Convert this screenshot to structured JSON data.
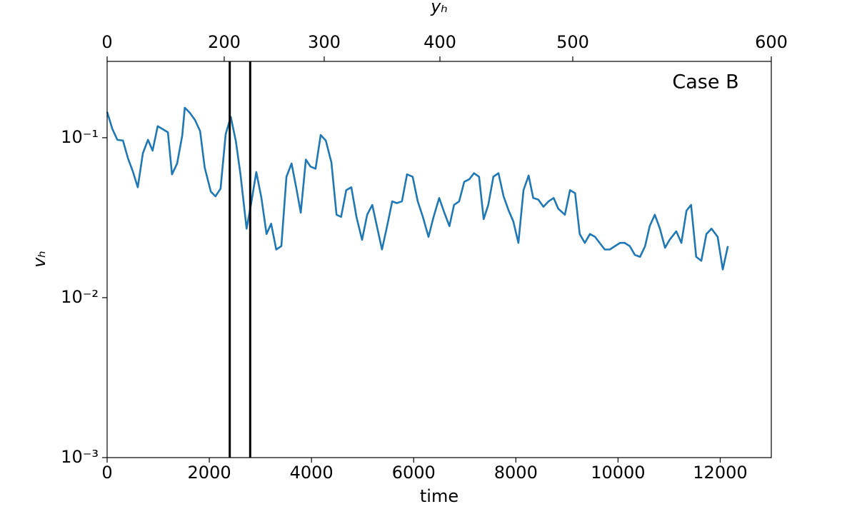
{
  "chart_data": {
    "type": "line",
    "annotation": "Case B",
    "xlabel": "time",
    "ylabel": "vₕ",
    "x2label": "yₕ",
    "xlim": [
      0,
      13000
    ],
    "xticks": [
      0,
      2000,
      4000,
      6000,
      8000,
      10000,
      12000
    ],
    "x2ticks": [
      0,
      200,
      300,
      400,
      500,
      600
    ],
    "x2tick_time": [
      0,
      2292,
      4249,
      6514,
      9114,
      13000
    ],
    "ylim": [
      0.001,
      0.3
    ],
    "yscale": "log",
    "yticks": [
      {
        "value": 0.001,
        "label": "10⁻³"
      },
      {
        "value": 0.01,
        "label": "10⁻²"
      },
      {
        "value": 0.1,
        "label": "10⁻¹"
      }
    ],
    "vlines": [
      2400,
      2800
    ],
    "vline_color": "#000000",
    "grid": false,
    "series": [
      {
        "name": "vₕ",
        "color": "#1f77b4",
        "x": [
          0,
          100,
          200,
          310,
          410,
          500,
          600,
          700,
          800,
          890,
          990,
          1090,
          1190,
          1270,
          1370,
          1470,
          1520,
          1620,
          1720,
          1820,
          1910,
          2030,
          2120,
          2220,
          2320,
          2420,
          2520,
          2610,
          2730,
          2820,
          2920,
          3020,
          3120,
          3210,
          3310,
          3410,
          3510,
          3610,
          3700,
          3790,
          3890,
          3980,
          4080,
          4180,
          4280,
          4390,
          4490,
          4580,
          4680,
          4780,
          4880,
          4990,
          5090,
          5190,
          5280,
          5380,
          5480,
          5580,
          5670,
          5770,
          5870,
          5980,
          6080,
          6180,
          6290,
          6390,
          6500,
          6600,
          6700,
          6790,
          6890,
          6990,
          7090,
          7180,
          7280,
          7370,
          7460,
          7560,
          7660,
          7760,
          7860,
          7950,
          8050,
          8150,
          8250,
          8340,
          8440,
          8540,
          8640,
          8740,
          8830,
          8960,
          9060,
          9160,
          9250,
          9350,
          9450,
          9550,
          9640,
          9740,
          9840,
          9940,
          10040,
          10130,
          10230,
          10330,
          10430,
          10530,
          10620,
          10720,
          10820,
          10920,
          11010,
          11140,
          11240,
          11340,
          11430,
          11530,
          11630,
          11730,
          11830,
          11950,
          12050,
          12150
        ],
        "values": [
          0.145,
          0.114,
          0.097,
          0.096,
          0.074,
          0.062,
          0.049,
          0.08,
          0.097,
          0.083,
          0.118,
          0.113,
          0.108,
          0.059,
          0.069,
          0.103,
          0.154,
          0.143,
          0.129,
          0.11,
          0.065,
          0.046,
          0.043,
          0.048,
          0.105,
          0.135,
          0.095,
          0.059,
          0.027,
          0.039,
          0.061,
          0.042,
          0.025,
          0.029,
          0.02,
          0.021,
          0.057,
          0.069,
          0.049,
          0.034,
          0.073,
          0.066,
          0.064,
          0.104,
          0.096,
          0.07,
          0.033,
          0.032,
          0.047,
          0.049,
          0.032,
          0.023,
          0.033,
          0.038,
          0.028,
          0.02,
          0.028,
          0.04,
          0.039,
          0.04,
          0.059,
          0.057,
          0.04,
          0.032,
          0.024,
          0.032,
          0.042,
          0.034,
          0.028,
          0.038,
          0.04,
          0.053,
          0.055,
          0.06,
          0.057,
          0.031,
          0.038,
          0.057,
          0.06,
          0.043,
          0.035,
          0.03,
          0.022,
          0.047,
          0.058,
          0.042,
          0.041,
          0.037,
          0.04,
          0.042,
          0.036,
          0.033,
          0.047,
          0.045,
          0.025,
          0.022,
          0.025,
          0.024,
          0.022,
          0.02,
          0.02,
          0.021,
          0.022,
          0.022,
          0.021,
          0.0185,
          0.018,
          0.021,
          0.028,
          0.033,
          0.027,
          0.0205,
          0.023,
          0.026,
          0.022,
          0.035,
          0.038,
          0.018,
          0.017,
          0.025,
          0.027,
          0.024,
          0.015,
          0.021
        ]
      }
    ]
  }
}
